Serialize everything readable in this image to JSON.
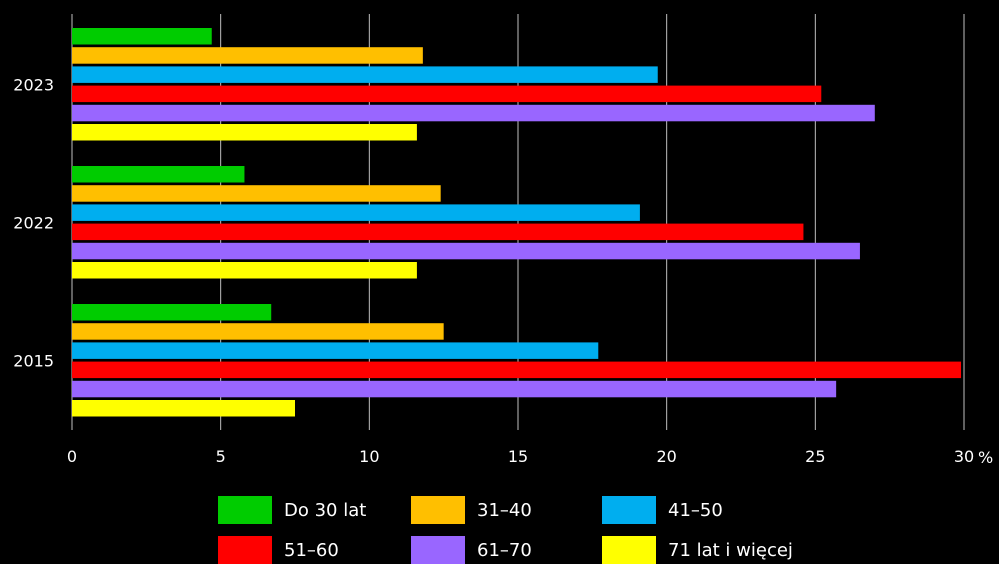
{
  "chart_data": {
    "type": "bar",
    "orientation": "horizontal",
    "categories": [
      "2023",
      "2022",
      "2015"
    ],
    "series": [
      {
        "name": "Do 30 lat",
        "color": "#00cc00",
        "values": [
          4.7,
          5.8,
          6.7
        ]
      },
      {
        "name": "31–40",
        "color": "#ffbf00",
        "values": [
          11.8,
          12.4,
          12.5
        ]
      },
      {
        "name": "41–50",
        "color": "#00aeef",
        "values": [
          19.7,
          19.1,
          17.7
        ]
      },
      {
        "name": "51–60",
        "color": "#ff0000",
        "values": [
          25.2,
          24.6,
          29.9
        ]
      },
      {
        "name": "61–70",
        "color": "#9966ff",
        "values": [
          27.0,
          26.5,
          25.7
        ]
      },
      {
        "name": "71 lat i więcej",
        "color": "#ffff00",
        "values": [
          11.6,
          11.6,
          7.5
        ]
      }
    ],
    "xlim": [
      0,
      30
    ],
    "x_ticks": [
      "0",
      "5",
      "10",
      "15",
      "20",
      "25",
      "30"
    ],
    "x_unit": "%",
    "grid": true,
    "legend_position": "bottom"
  }
}
